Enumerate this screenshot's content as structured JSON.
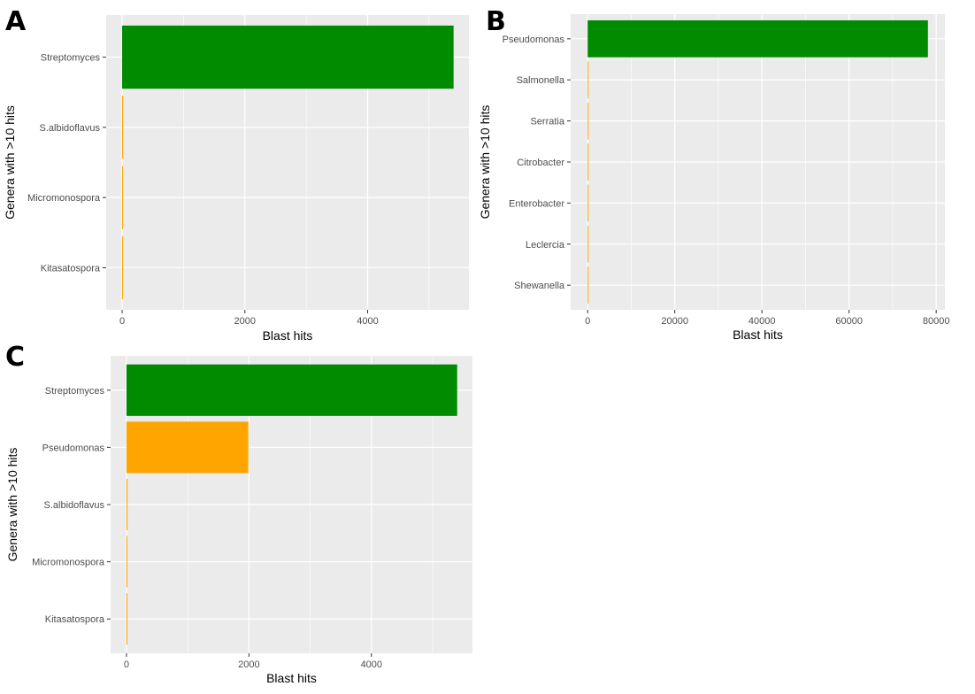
{
  "chart_data": [
    {
      "panel": "A",
      "type": "bar",
      "orientation": "horizontal",
      "categories": [
        "Streptomyces",
        "S.albidoflavus",
        "Micromonospora",
        "Kitasatospora"
      ],
      "values": [
        5400,
        16,
        5,
        4
      ],
      "colors": [
        "#008b00",
        "#ffa500",
        "#ffa500",
        "#ffa500"
      ],
      "xlabel": "Blast hits",
      "ylabel": "Genera with >10 hits",
      "xlim": [
        -260,
        5650
      ],
      "xticks": [
        0,
        2000,
        4000
      ],
      "xtick_labels": [
        "0",
        "2000",
        "4000"
      ],
      "grid": true
    },
    {
      "panel": "B",
      "type": "bar",
      "orientation": "horizontal",
      "categories": [
        "Pseudomonas",
        "Salmonella",
        "Serratia",
        "Citrobacter",
        "Enterobacter",
        "Leclercia",
        "Shewanella"
      ],
      "values": [
        78100,
        150,
        40,
        30,
        20,
        15,
        12
      ],
      "colors": [
        "#008b00",
        "#ffa500",
        "#ffa500",
        "#ffa500",
        "#ffa500",
        "#ffa500",
        "#ffa500"
      ],
      "xlabel": "Blast hits",
      "ylabel": "Genera with >10 hits",
      "xlim": [
        -3900,
        82000
      ],
      "xticks": [
        0,
        20000,
        40000,
        60000,
        80000
      ],
      "xtick_labels": [
        "0",
        "20000",
        "40000",
        "60000",
        "80000"
      ],
      "grid": true
    },
    {
      "panel": "C",
      "type": "bar",
      "orientation": "horizontal",
      "categories": [
        "Streptomyces",
        "Pseudomonas",
        "S.albidoflavus",
        "Micromonospora",
        "Kitasatospora"
      ],
      "values": [
        5400,
        1990,
        16,
        5,
        4
      ],
      "colors": [
        "#008b00",
        "#ffa500",
        "#ffa500",
        "#ffa500",
        "#ffa500"
      ],
      "xlabel": "Blast hits",
      "ylabel": "Genera with >10 hits",
      "xlim": [
        -260,
        5650
      ],
      "xticks": [
        0,
        2000,
        4000
      ],
      "xtick_labels": [
        "0",
        "2000",
        "4000"
      ],
      "grid": true
    }
  ]
}
